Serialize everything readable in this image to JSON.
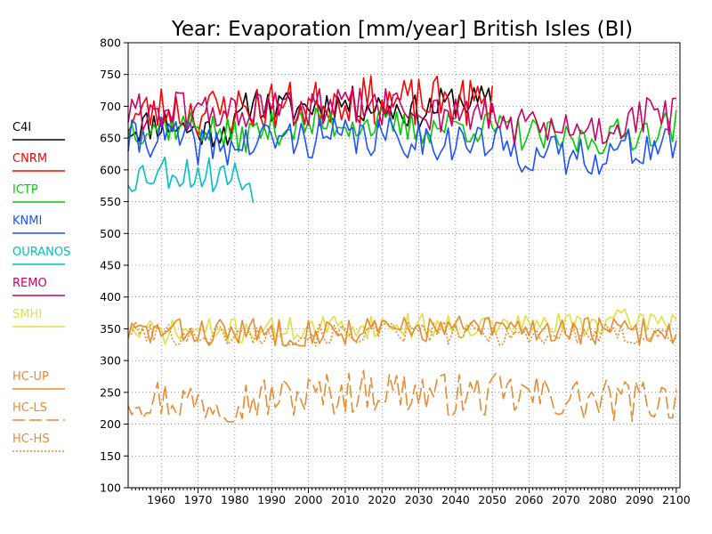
{
  "chart_data": {
    "type": "line",
    "title": "Year: Evaporation [mm/year] British Isles (BI)",
    "xlabel": "",
    "ylabel": "",
    "xlim": [
      1951,
      2101
    ],
    "ylim": [
      100,
      800
    ],
    "x_ticks": [
      1960,
      1970,
      1980,
      1990,
      2000,
      2010,
      2020,
      2030,
      2040,
      2050,
      2060,
      2070,
      2080,
      2090,
      2100
    ],
    "y_ticks": [
      100,
      150,
      200,
      250,
      300,
      350,
      400,
      450,
      500,
      550,
      600,
      650,
      700,
      750,
      800
    ],
    "grid": true,
    "legend_position": "left",
    "series": [
      {
        "name": "C4I",
        "color": "#000000",
        "dash": "solid",
        "x_range": [
          1951,
          2050
        ],
        "anchors": [
          [
            1951,
            665
          ],
          [
            1960,
            675
          ],
          [
            1970,
            660
          ],
          [
            1980,
            665
          ],
          [
            1985,
            715
          ],
          [
            1990,
            695
          ],
          [
            2000,
            700
          ],
          [
            2010,
            705
          ],
          [
            2020,
            700
          ],
          [
            2030,
            690
          ],
          [
            2040,
            710
          ],
          [
            2050,
            705
          ]
        ],
        "noise": 55,
        "seed": 11
      },
      {
        "name": "CNRM",
        "color": "#ff0000",
        "dash": "solid",
        "x_range": [
          1951,
          2050
        ],
        "anchors": [
          [
            1951,
            680
          ],
          [
            1960,
            695
          ],
          [
            1970,
            690
          ],
          [
            1980,
            695
          ],
          [
            1990,
            700
          ],
          [
            2000,
            700
          ],
          [
            2010,
            715
          ],
          [
            2020,
            705
          ],
          [
            2030,
            705
          ],
          [
            2040,
            710
          ],
          [
            2050,
            700
          ]
        ],
        "noise": 80,
        "seed": 23
      },
      {
        "name": "ICTP",
        "color": "#00cc00",
        "dash": "solid",
        "x_range": [
          1951,
          2100
        ],
        "anchors": [
          [
            1951,
            665
          ],
          [
            1960,
            670
          ],
          [
            1970,
            670
          ],
          [
            1980,
            650
          ],
          [
            1990,
            665
          ],
          [
            2000,
            670
          ],
          [
            2010,
            675
          ],
          [
            2020,
            670
          ],
          [
            2030,
            665
          ],
          [
            2040,
            670
          ],
          [
            2050,
            665
          ],
          [
            2060,
            655
          ],
          [
            2070,
            645
          ],
          [
            2080,
            650
          ],
          [
            2090,
            660
          ],
          [
            2100,
            670
          ]
        ],
        "noise": 55,
        "seed": 37
      },
      {
        "name": "KNMI",
        "color": "#1e50ff",
        "dash": "solid",
        "x_range": [
          1951,
          2100
        ],
        "anchors": [
          [
            1951,
            645
          ],
          [
            1960,
            655
          ],
          [
            1970,
            640
          ],
          [
            1980,
            635
          ],
          [
            1990,
            650
          ],
          [
            2000,
            650
          ],
          [
            2010,
            650
          ],
          [
            2020,
            650
          ],
          [
            2030,
            650
          ],
          [
            2040,
            645
          ],
          [
            2050,
            640
          ],
          [
            2060,
            625
          ],
          [
            2070,
            620
          ],
          [
            2080,
            625
          ],
          [
            2090,
            635
          ],
          [
            2100,
            640
          ]
        ],
        "noise": 65,
        "seed": 41
      },
      {
        "name": "OURANOS",
        "color": "#00c0c0",
        "dash": "solid",
        "x_range": [
          1951,
          1985
        ],
        "anchors": [
          [
            1951,
            590
          ],
          [
            1960,
            600
          ],
          [
            1970,
            595
          ],
          [
            1980,
            590
          ],
          [
            1985,
            575
          ]
        ],
        "noise": 60,
        "seed": 53
      },
      {
        "name": "REMO",
        "color": "#cc0066",
        "dash": "solid",
        "x_range": [
          1951,
          2100
        ],
        "anchors": [
          [
            1951,
            690
          ],
          [
            1960,
            695
          ],
          [
            1970,
            690
          ],
          [
            1980,
            690
          ],
          [
            1990,
            695
          ],
          [
            2000,
            695
          ],
          [
            2010,
            700
          ],
          [
            2020,
            700
          ],
          [
            2030,
            690
          ],
          [
            2040,
            690
          ],
          [
            2050,
            680
          ],
          [
            2060,
            665
          ],
          [
            2070,
            660
          ],
          [
            2080,
            665
          ],
          [
            2090,
            680
          ],
          [
            2100,
            690
          ]
        ],
        "noise": 65,
        "seed": 61
      },
      {
        "name": "SMHI",
        "color": "#e0e040",
        "dash": "solid",
        "x_range": [
          1951,
          2100
        ],
        "anchors": [
          [
            1951,
            345
          ],
          [
            1970,
            345
          ],
          [
            2000,
            350
          ],
          [
            2020,
            355
          ],
          [
            2040,
            355
          ],
          [
            2060,
            355
          ],
          [
            2080,
            360
          ],
          [
            2100,
            365
          ]
        ],
        "noise": 40,
        "seed": 71
      },
      {
        "name": "HC-UP",
        "color": "#e88a2e",
        "dash": "solid",
        "x_range": [
          1951,
          2100
        ],
        "anchors": [
          [
            1951,
            345
          ],
          [
            1970,
            345
          ],
          [
            2000,
            345
          ],
          [
            2030,
            350
          ],
          [
            2060,
            350
          ],
          [
            2090,
            345
          ],
          [
            2100,
            345
          ]
        ],
        "noise": 45,
        "seed": 83
      },
      {
        "name": "HC-LS",
        "color": "#e88a2e",
        "dash": "long",
        "x_range": [
          1951,
          2100
        ],
        "anchors": [
          [
            1951,
            245
          ],
          [
            1970,
            235
          ],
          [
            2000,
            245
          ],
          [
            2020,
            255
          ],
          [
            2040,
            245
          ],
          [
            2060,
            245
          ],
          [
            2080,
            235
          ],
          [
            2100,
            240
          ]
        ],
        "noise": 70,
        "seed": 97
      },
      {
        "name": "HC-HS",
        "color": "#e88a2e",
        "dash": "dot",
        "x_range": [
          1951,
          2100
        ],
        "anchors": [
          [
            1951,
            345
          ],
          [
            1970,
            340
          ],
          [
            2000,
            340
          ],
          [
            2030,
            345
          ],
          [
            2060,
            340
          ],
          [
            2090,
            340
          ],
          [
            2100,
            340
          ]
        ],
        "noise": 35,
        "seed": 101
      }
    ]
  }
}
